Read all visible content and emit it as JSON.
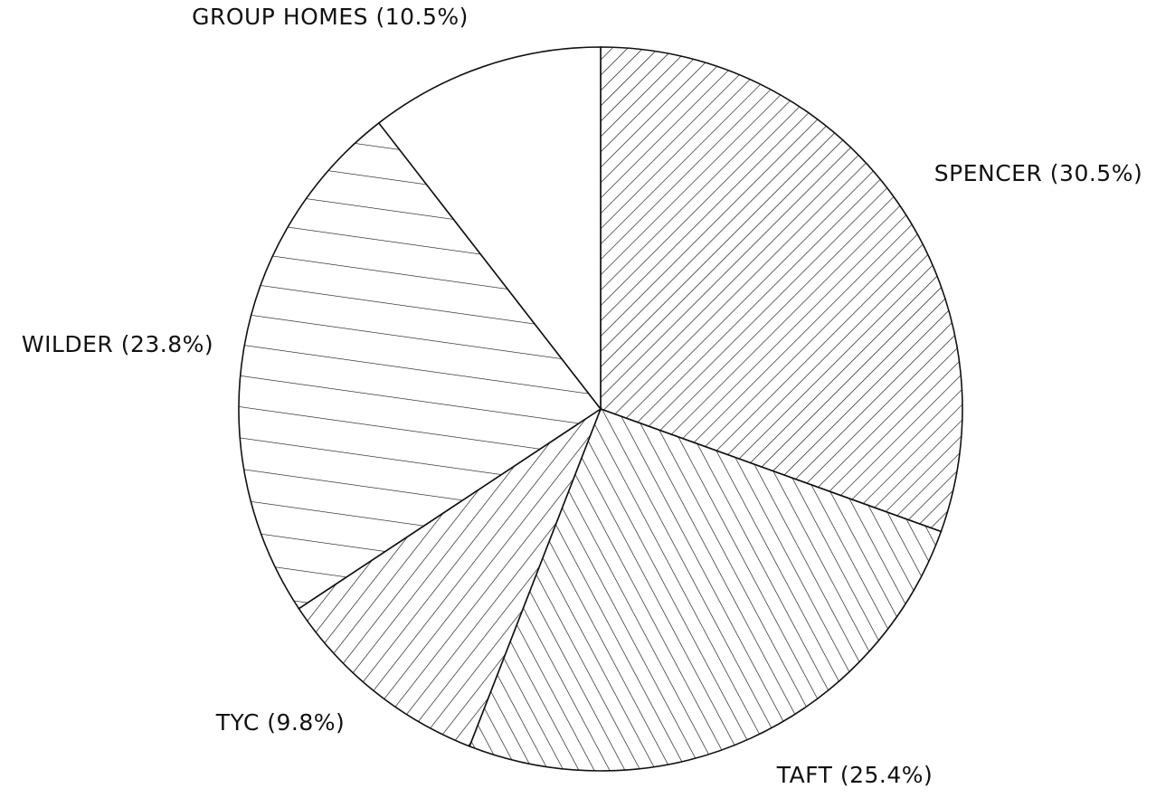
{
  "chart_data": {
    "type": "pie",
    "categories": [
      "SPENCER (30.5%)",
      "TAFT (25.4%)",
      "TYC (9.8%)",
      "WILDER (23.8%)",
      "GROUP HOMES (10.5%)"
    ],
    "values": [
      30.5,
      25.4,
      9.8,
      23.8,
      10.5
    ]
  }
}
